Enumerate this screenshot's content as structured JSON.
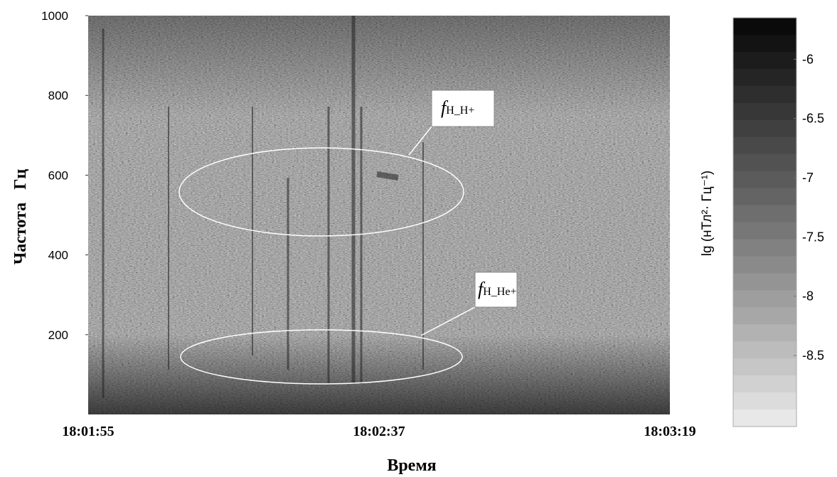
{
  "chart_data": {
    "type": "spectrogram",
    "x_tick_labels": [
      "18:01:55",
      "18:02:37",
      "18:03:19"
    ],
    "xlabel": "Время",
    "ylabel": "Частота   Гц",
    "ylim": [
      0,
      1000
    ],
    "yticks": [
      200,
      400,
      600,
      800,
      1000
    ],
    "colorbar": {
      "label": "lg (нТл²· Гц⁻¹)",
      "clim": [
        -9.1,
        -5.65
      ],
      "ticks": [
        -6,
        -6.5,
        -7,
        -7.5,
        -8,
        -8.5
      ]
    },
    "annotations": [
      {
        "text": "f",
        "sub": "H_H+"
      },
      {
        "text": "f",
        "sub": "H_He+"
      }
    ]
  }
}
